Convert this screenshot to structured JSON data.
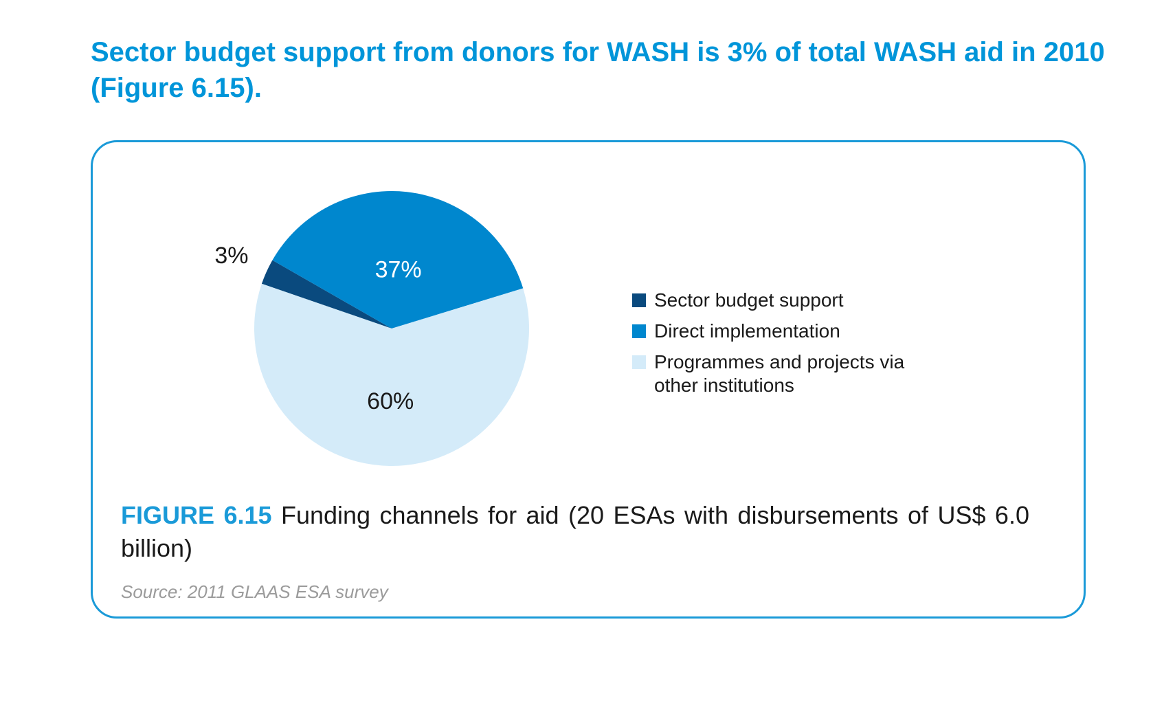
{
  "headline": "Sector budget support from donors for WASH is 3% of total WASH aid in 2010 (Figure 6.15).",
  "figure": {
    "label": "FIGURE 6.15",
    "caption": "Funding channels for aid (20 ESAs with disbursements of US$ 6.0 billion)",
    "source": "Source: 2011 GLAAS ESA survey"
  },
  "chart_data": {
    "type": "pie",
    "title": "",
    "slices": [
      {
        "name": "Sector budget support",
        "value": 3,
        "label": "3%",
        "color": "#0a4a7e",
        "label_color": "#1a1a1a"
      },
      {
        "name": "Direct implementation",
        "value": 37,
        "label": "37%",
        "color": "#0087ce",
        "label_color": "#ffffff"
      },
      {
        "name": "Programmes and projects via other institutions",
        "value": 60,
        "label": "60%",
        "color": "#d4ebf9",
        "label_color": "#1a1a1a"
      }
    ],
    "legend_position": "right",
    "legend": [
      {
        "label": "Sector budget support",
        "color": "#0a4a7e"
      },
      {
        "label": "Direct implementation",
        "color": "#0087ce"
      },
      {
        "label": "Programmes and projects via other institutions",
        "color": "#d4ebf9"
      }
    ]
  }
}
